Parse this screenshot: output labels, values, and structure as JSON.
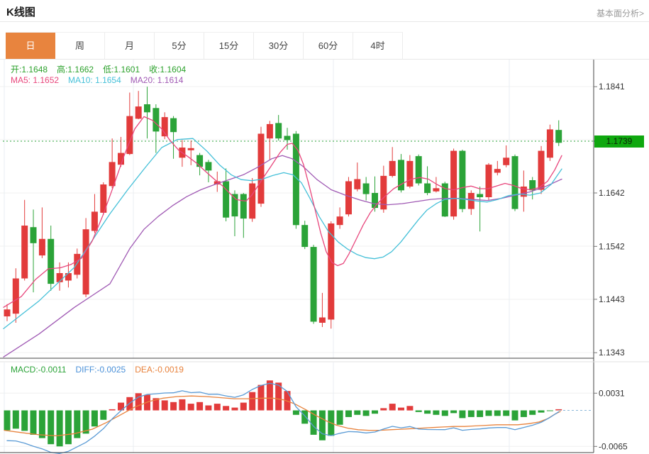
{
  "header": {
    "title": "K线图",
    "link_label": "基本面分析>"
  },
  "tabs": {
    "active_index": 0,
    "items": [
      {
        "label": "日",
        "name": "tab-day"
      },
      {
        "label": "周",
        "name": "tab-week"
      },
      {
        "label": "月",
        "name": "tab-month"
      },
      {
        "label": "5分",
        "name": "tab-5min"
      },
      {
        "label": "15分",
        "name": "tab-15min"
      },
      {
        "label": "30分",
        "name": "tab-30min"
      },
      {
        "label": "60分",
        "name": "tab-60min"
      },
      {
        "label": "4时",
        "name": "tab-4hour"
      }
    ]
  },
  "readout": {
    "ohlc": [
      {
        "label": "开:",
        "value": "1.1648"
      },
      {
        "label": "高:",
        "value": "1.1662"
      },
      {
        "label": "低:",
        "value": "1.1601"
      },
      {
        "label": "收:",
        "value": "1.1604"
      }
    ],
    "ma": [
      {
        "label": "MA5: ",
        "value": "1.1652"
      },
      {
        "label": "MA10: ",
        "value": "1.1654"
      },
      {
        "label": "MA20: ",
        "value": "1.1614"
      }
    ]
  },
  "macd_readout": [
    {
      "label": "MACD:",
      "value": "-0.0011"
    },
    {
      "label": "DIFF:",
      "value": "-0.0025"
    },
    {
      "label": "DEA:",
      "value": "-0.0019"
    }
  ],
  "colors": {
    "accent_orange": "#e8843e",
    "up": "#e23b3b",
    "down": "#2ba338",
    "badge_bg": "#0fa80f",
    "ohlc_text": "#2ba12b",
    "ma5": "#e8467c",
    "ma10": "#45c0d8",
    "ma20": "#a05ab4",
    "macd_text": "#2ba338",
    "diff_text": "#4a90d8",
    "dea_text": "#e8823c",
    "diff_line": "#5b9bd5",
    "dea_line": "#e8823c",
    "dashed_price": "#2ba338",
    "grid": "#f0f0f0",
    "vgrid": "#e9eef3",
    "axis": "#444444",
    "label": "#333333",
    "zero_dash": "#8ab8d8"
  },
  "chart_data": {
    "type": "candlestick",
    "title": "K线图",
    "period_selected": "日",
    "price_axis_labels": [
      {
        "label": "1.1841",
        "price": 1.1841
      },
      {
        "label": "1.1642",
        "price": 1.1642
      },
      {
        "label": "1.1542",
        "price": 1.1542
      },
      {
        "label": "1.1443",
        "price": 1.1443
      },
      {
        "label": "1.1343",
        "price": 1.1343
      }
    ],
    "current_price": {
      "label": "1.1739",
      "price": 1.1739
    },
    "ylim": [
      1.1332,
      1.1891
    ],
    "vgrid_x": [
      6,
      188,
      470,
      718
    ],
    "candles": [
      [
        1.1411,
        1.1434,
        1.1402,
        1.1424
      ],
      [
        1.1416,
        1.1501,
        1.1399,
        1.1482
      ],
      [
        1.1482,
        1.1629,
        1.1478,
        1.1581
      ],
      [
        1.1578,
        1.1611,
        1.1456,
        1.1548
      ],
      [
        1.1525,
        1.1615,
        1.152,
        1.1556
      ],
      [
        1.1556,
        1.1581,
        1.1459,
        1.1472
      ],
      [
        1.1475,
        1.1512,
        1.1459,
        1.1492
      ],
      [
        1.1478,
        1.1512,
        1.1465,
        1.1492
      ],
      [
        1.1489,
        1.1538,
        1.1482,
        1.1528
      ],
      [
        1.1452,
        1.1595,
        1.1447,
        1.1574
      ],
      [
        1.1571,
        1.164,
        1.1567,
        1.1607
      ],
      [
        1.1605,
        1.1662,
        1.1601,
        1.1658
      ],
      [
        1.1655,
        1.1744,
        1.1651,
        1.17
      ],
      [
        1.1695,
        1.1747,
        1.1691,
        1.1717
      ],
      [
        1.1715,
        1.183,
        1.1713,
        1.1786
      ],
      [
        1.1781,
        1.1833,
        1.178,
        1.1804
      ],
      [
        1.1808,
        1.1841,
        1.1744,
        1.1793
      ],
      [
        1.1801,
        1.1808,
        1.1717,
        1.1757
      ],
      [
        1.1748,
        1.1793,
        1.1743,
        1.1784
      ],
      [
        1.1782,
        1.1786,
        1.1706,
        1.1756
      ],
      [
        1.1708,
        1.1741,
        1.1691,
        1.1727
      ],
      [
        1.1722,
        1.174,
        1.1694,
        1.1726
      ],
      [
        1.1713,
        1.1717,
        1.1675,
        1.1691
      ],
      [
        1.17,
        1.1704,
        1.1662,
        1.1684
      ],
      [
        1.1658,
        1.1682,
        1.1644,
        1.1664
      ],
      [
        1.1664,
        1.1688,
        1.1589,
        1.1596
      ],
      [
        1.164,
        1.1647,
        1.1561,
        1.1598
      ],
      [
        1.164,
        1.1642,
        1.1558,
        1.1594
      ],
      [
        1.1594,
        1.167,
        1.1588,
        1.166
      ],
      [
        1.1622,
        1.1766,
        1.1616,
        1.1753
      ],
      [
        1.1744,
        1.1777,
        1.1704,
        1.1771
      ],
      [
        1.1773,
        1.1788,
        1.174,
        1.1744
      ],
      [
        1.1749,
        1.1764,
        1.1723,
        1.1741
      ],
      [
        1.1753,
        1.1758,
        1.1575,
        1.1582
      ],
      [
        1.1582,
        1.159,
        1.1537,
        1.1541
      ],
      [
        1.1541,
        1.1545,
        1.1397,
        1.1401
      ],
      [
        1.1399,
        1.1455,
        1.1391,
        1.1409
      ],
      [
        1.1405,
        1.1589,
        1.1388,
        1.1585
      ],
      [
        1.1582,
        1.1615,
        1.1575,
        1.1598
      ],
      [
        1.1602,
        1.1672,
        1.1598,
        1.1664
      ],
      [
        1.1649,
        1.1699,
        1.1645,
        1.1668
      ],
      [
        1.166,
        1.1672,
        1.1628,
        1.164
      ],
      [
        1.1642,
        1.1673,
        1.1607,
        1.1614
      ],
      [
        1.1611,
        1.1693,
        1.1605,
        1.1674
      ],
      [
        1.1674,
        1.1728,
        1.1671,
        1.1702
      ],
      [
        1.1704,
        1.1715,
        1.1643,
        1.1647
      ],
      [
        1.1654,
        1.1713,
        1.1651,
        1.1702
      ],
      [
        1.1711,
        1.1714,
        1.1656,
        1.166
      ],
      [
        1.166,
        1.1692,
        1.1638,
        1.1642
      ],
      [
        1.1645,
        1.1672,
        1.1643,
        1.1651
      ],
      [
        1.166,
        1.1663,
        1.1597,
        1.1598
      ],
      [
        1.1598,
        1.1725,
        1.1592,
        1.1721
      ],
      [
        1.1721,
        1.1723,
        1.1606,
        1.1612
      ],
      [
        1.1612,
        1.1647,
        1.1601,
        1.1642
      ],
      [
        1.164,
        1.1654,
        1.157,
        1.1634
      ],
      [
        1.1634,
        1.1698,
        1.1629,
        1.1695
      ],
      [
        1.168,
        1.1702,
        1.1675,
        1.1687
      ],
      [
        1.1694,
        1.1731,
        1.169,
        1.1708
      ],
      [
        1.1711,
        1.1714,
        1.1608,
        1.1612
      ],
      [
        1.1635,
        1.1684,
        1.1607,
        1.1654
      ],
      [
        1.1666,
        1.1672,
        1.163,
        1.1647
      ],
      [
        1.1648,
        1.173,
        1.164,
        1.1721
      ],
      [
        1.1708,
        1.177,
        1.1702,
        1.1761
      ],
      [
        1.176,
        1.1778,
        1.173,
        1.1736
      ]
    ],
    "ma5_points": [
      [
        5,
        1.1428
      ],
      [
        30,
        1.1448
      ],
      [
        50,
        1.148
      ],
      [
        68,
        1.15
      ],
      [
        85,
        1.1502
      ],
      [
        100,
        1.1508
      ],
      [
        115,
        1.152
      ],
      [
        130,
        1.1552
      ],
      [
        145,
        1.16
      ],
      [
        160,
        1.1655
      ],
      [
        175,
        1.1712
      ],
      [
        190,
        1.1762
      ],
      [
        203,
        1.1785
      ],
      [
        215,
        1.1778
      ],
      [
        228,
        1.1762
      ],
      [
        240,
        1.174
      ],
      [
        252,
        1.1722
      ],
      [
        265,
        1.171
      ],
      [
        278,
        1.1697
      ],
      [
        290,
        1.1682
      ],
      [
        302,
        1.1668
      ],
      [
        314,
        1.1655
      ],
      [
        325,
        1.164
      ],
      [
        333,
        1.163
      ],
      [
        340,
        1.1628
      ],
      [
        347,
        1.1627
      ],
      [
        355,
        1.1638
      ],
      [
        365,
        1.1658
      ],
      [
        375,
        1.1678
      ],
      [
        385,
        1.1698
      ],
      [
        395,
        1.1718
      ],
      [
        405,
        1.1733
      ],
      [
        412,
        1.1735
      ],
      [
        420,
        1.1722
      ],
      [
        428,
        1.1695
      ],
      [
        436,
        1.1655
      ],
      [
        444,
        1.1612
      ],
      [
        452,
        1.1568
      ],
      [
        460,
        1.1532
      ],
      [
        468,
        1.1512
      ],
      [
        476,
        1.1506
      ],
      [
        484,
        1.151
      ],
      [
        492,
        1.1528
      ],
      [
        502,
        1.1555
      ],
      [
        512,
        1.1582
      ],
      [
        522,
        1.1605
      ],
      [
        532,
        1.1622
      ],
      [
        543,
        1.1636
      ],
      [
        555,
        1.165
      ],
      [
        568,
        1.166
      ],
      [
        580,
        1.1668
      ],
      [
        592,
        1.1671
      ],
      [
        604,
        1.1668
      ],
      [
        616,
        1.1658
      ],
      [
        628,
        1.165
      ],
      [
        640,
        1.1648
      ],
      [
        652,
        1.1652
      ],
      [
        664,
        1.1655
      ],
      [
        676,
        1.165
      ],
      [
        688,
        1.165
      ],
      [
        700,
        1.1655
      ],
      [
        712,
        1.166
      ],
      [
        724,
        1.1656
      ],
      [
        736,
        1.165
      ],
      [
        748,
        1.1648
      ],
      [
        760,
        1.1652
      ],
      [
        772,
        1.1664
      ],
      [
        782,
        1.1685
      ],
      [
        792,
        1.1712
      ]
    ],
    "ma10_points": [
      [
        5,
        1.1388
      ],
      [
        55,
        1.144
      ],
      [
        105,
        1.1503
      ],
      [
        155,
        1.1603
      ],
      [
        180,
        1.1648
      ],
      [
        205,
        1.169
      ],
      [
        228,
        1.1727
      ],
      [
        250,
        1.1742
      ],
      [
        272,
        1.1744
      ],
      [
        292,
        1.172
      ],
      [
        310,
        1.1694
      ],
      [
        326,
        1.1676
      ],
      [
        340,
        1.1667
      ],
      [
        355,
        1.1665
      ],
      [
        370,
        1.1668
      ],
      [
        385,
        1.1675
      ],
      [
        400,
        1.168
      ],
      [
        413,
        1.1676
      ],
      [
        425,
        1.1661
      ],
      [
        437,
        1.1632
      ],
      [
        450,
        1.1598
      ],
      [
        463,
        1.157
      ],
      [
        477,
        1.155
      ],
      [
        490,
        1.1537
      ],
      [
        503,
        1.1527
      ],
      [
        516,
        1.1521
      ],
      [
        528,
        1.1519
      ],
      [
        540,
        1.1522
      ],
      [
        552,
        1.1532
      ],
      [
        565,
        1.155
      ],
      [
        578,
        1.1572
      ],
      [
        590,
        1.1592
      ],
      [
        602,
        1.161
      ],
      [
        615,
        1.1622
      ],
      [
        627,
        1.163
      ],
      [
        642,
        1.1632
      ],
      [
        657,
        1.163
      ],
      [
        672,
        1.1627
      ],
      [
        687,
        1.1625
      ],
      [
        702,
        1.163
      ],
      [
        717,
        1.1637
      ],
      [
        732,
        1.164
      ],
      [
        747,
        1.1638
      ],
      [
        762,
        1.1642
      ],
      [
        777,
        1.1658
      ],
      [
        792,
        1.1687
      ]
    ],
    "ma20_points": [
      [
        5,
        1.1335
      ],
      [
        55,
        1.1378
      ],
      [
        105,
        1.1428
      ],
      [
        155,
        1.1472
      ],
      [
        183,
        1.1538
      ],
      [
        203,
        1.1574
      ],
      [
        223,
        1.1598
      ],
      [
        243,
        1.1618
      ],
      [
        263,
        1.1635
      ],
      [
        283,
        1.1648
      ],
      [
        303,
        1.1658
      ],
      [
        323,
        1.1667
      ],
      [
        343,
        1.1676
      ],
      [
        363,
        1.169
      ],
      [
        383,
        1.1706
      ],
      [
        398,
        1.1712
      ],
      [
        412,
        1.1706
      ],
      [
        427,
        1.1692
      ],
      [
        447,
        1.1667
      ],
      [
        467,
        1.1648
      ],
      [
        487,
        1.1638
      ],
      [
        507,
        1.1629
      ],
      [
        527,
        1.1622
      ],
      [
        547,
        1.162
      ],
      [
        567,
        1.1622
      ],
      [
        587,
        1.1626
      ],
      [
        607,
        1.163
      ],
      [
        627,
        1.1632
      ],
      [
        647,
        1.1632
      ],
      [
        667,
        1.163
      ],
      [
        687,
        1.1628
      ],
      [
        707,
        1.1632
      ],
      [
        727,
        1.1638
      ],
      [
        747,
        1.1644
      ],
      [
        767,
        1.1653
      ],
      [
        792,
        1.1668
      ]
    ],
    "macd": {
      "axis_labels": [
        {
          "label": "0.0031",
          "value": 0.0031
        },
        {
          "label": "-0.0065",
          "value": -0.0065
        }
      ],
      "hist": [
        -0.0036,
        -0.0033,
        -0.0037,
        -0.0044,
        -0.005,
        -0.0061,
        -0.0065,
        -0.0061,
        -0.005,
        -0.0042,
        -0.0029,
        -0.0017,
        0.0002,
        0.0014,
        0.0024,
        0.0031,
        0.0028,
        0.0022,
        0.0018,
        0.0015,
        0.002,
        0.0012,
        0.0015,
        0.0009,
        0.0012,
        0.0008,
        0.0005,
        0.0014,
        0.0033,
        0.0046,
        0.0054,
        0.005,
        0.0035,
        -0.0008,
        -0.0024,
        -0.0044,
        -0.0054,
        -0.0046,
        -0.0026,
        -0.0012,
        -0.0008,
        -0.001,
        -0.0006,
        0.0004,
        0.0012,
        0.0005,
        0.0008,
        -0.0003,
        -0.0006,
        -0.0008,
        -0.001,
        -0.0005,
        -0.0014,
        -0.0012,
        -0.0012,
        -0.001,
        -0.001,
        -0.001,
        -0.0018,
        -0.0012,
        -0.0008,
        -0.0004,
        -0.0001,
        0.0002
      ],
      "dea_points": [
        [
          6,
          -0.0036
        ],
        [
          30,
          -0.004
        ],
        [
          55,
          -0.0044
        ],
        [
          80,
          -0.0046
        ],
        [
          105,
          -0.0042
        ],
        [
          130,
          -0.0034
        ],
        [
          150,
          -0.0022
        ],
        [
          170,
          -0.0008
        ],
        [
          190,
          0.0006
        ],
        [
          210,
          0.0016
        ],
        [
          230,
          0.0022
        ],
        [
          250,
          0.0025
        ],
        [
          270,
          0.0026
        ],
        [
          290,
          0.0025
        ],
        [
          310,
          0.0023
        ],
        [
          330,
          0.0021
        ],
        [
          350,
          0.0021
        ],
        [
          370,
          0.0022
        ],
        [
          385,
          0.0022
        ],
        [
          400,
          0.0019
        ],
        [
          415,
          0.0012
        ],
        [
          430,
          0.0002
        ],
        [
          445,
          -0.0009
        ],
        [
          460,
          -0.0019
        ],
        [
          475,
          -0.0027
        ],
        [
          490,
          -0.0032
        ],
        [
          505,
          -0.0035
        ],
        [
          520,
          -0.0036
        ],
        [
          535,
          -0.0036
        ],
        [
          550,
          -0.0035
        ],
        [
          565,
          -0.0034
        ],
        [
          580,
          -0.0033
        ],
        [
          595,
          -0.0032
        ],
        [
          610,
          -0.0031
        ],
        [
          625,
          -0.003
        ],
        [
          640,
          -0.0029
        ],
        [
          655,
          -0.0029
        ],
        [
          670,
          -0.0028
        ],
        [
          685,
          -0.0027
        ],
        [
          700,
          -0.0026
        ],
        [
          715,
          -0.0026
        ],
        [
          730,
          -0.0026
        ],
        [
          745,
          -0.0024
        ],
        [
          760,
          -0.0021
        ],
        [
          772,
          -0.0015
        ],
        [
          782,
          -0.0007
        ],
        [
          790,
          -0.0002
        ]
      ]
    }
  }
}
